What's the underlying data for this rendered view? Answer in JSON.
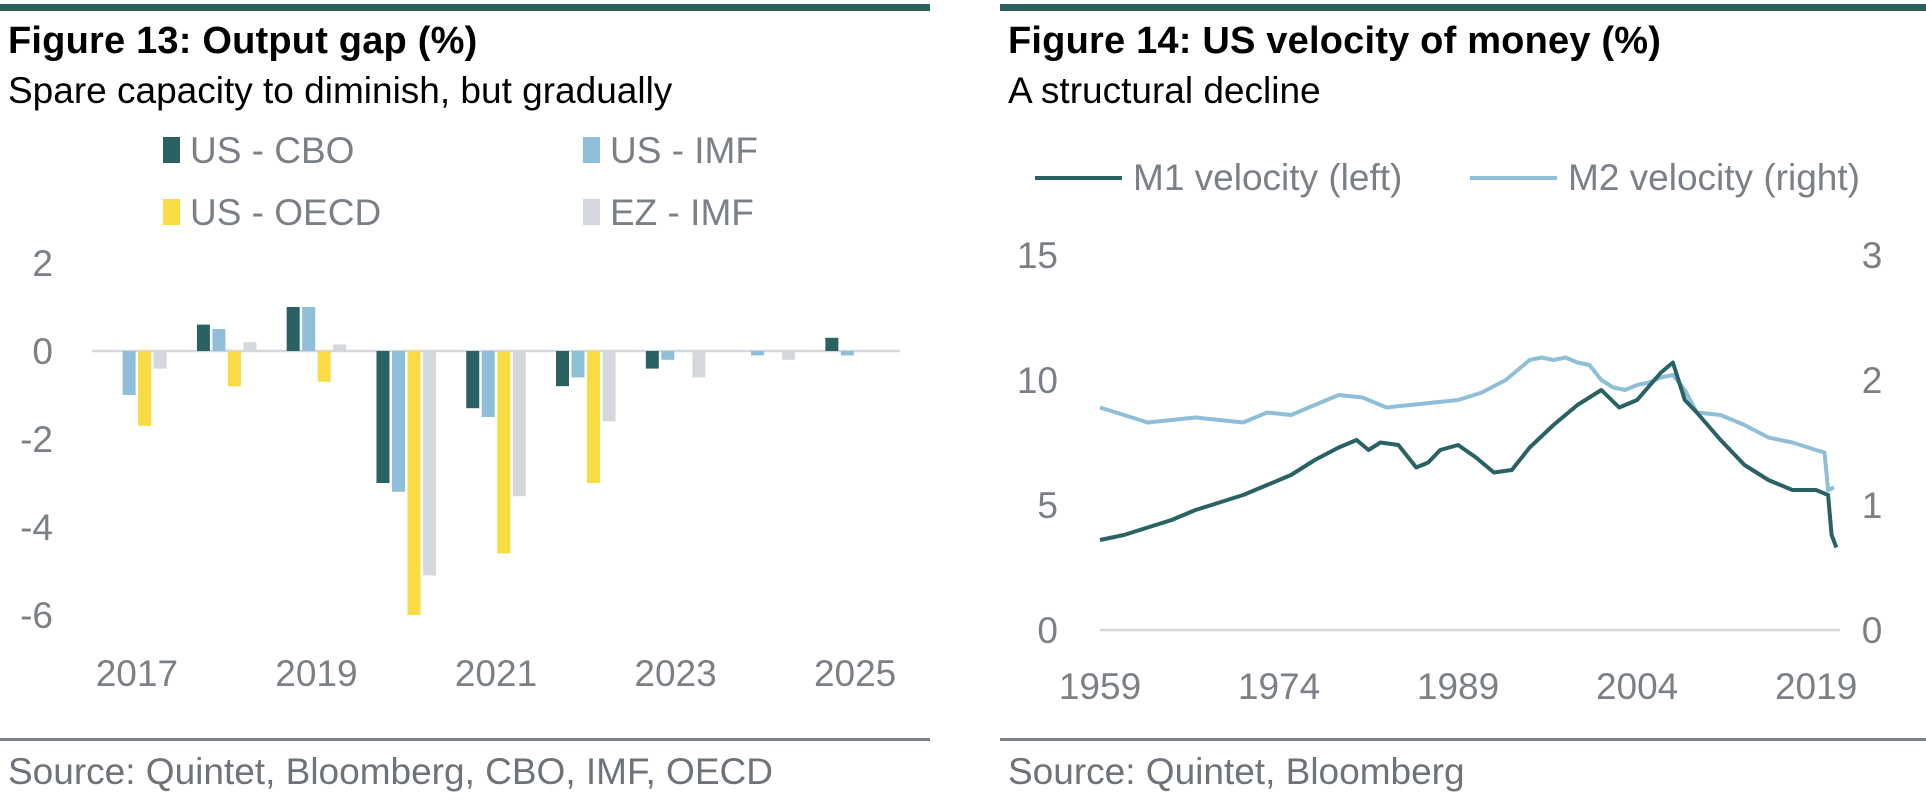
{
  "figure13": {
    "title": "Figure 13: Output gap (%)",
    "subtitle": "Spare capacity to diminish, but gradually",
    "source": "Source: Quintet, Bloomberg, CBO, IMF, OECD",
    "chart_data": {
      "type": "bar",
      "categories": [
        "2017",
        "2018",
        "2019",
        "2020",
        "2021",
        "2022",
        "2023",
        "2024",
        "2025"
      ],
      "tick_labels": [
        "2017",
        "2019",
        "2021",
        "2023",
        "2025"
      ],
      "ylim": [
        -6,
        2
      ],
      "yticks": [
        "2",
        "0",
        "-2",
        "-4",
        "-6"
      ],
      "legend_position": "top",
      "series": [
        {
          "name": "US - CBO",
          "color": "#2a6163",
          "values": [
            null,
            0.6,
            1.0,
            -3.0,
            -1.3,
            -0.8,
            -0.4,
            null,
            0.3
          ]
        },
        {
          "name": "US - IMF",
          "color": "#8fbfd8",
          "values": [
            -1.0,
            0.5,
            1.0,
            -3.2,
            -1.5,
            -0.6,
            -0.2,
            -0.1,
            -0.1
          ]
        },
        {
          "name": "US - OECD",
          "color": "#f9dc44",
          "values": [
            -1.7,
            -0.8,
            -0.7,
            -6.0,
            -4.6,
            -3.0,
            null,
            null,
            null
          ]
        },
        {
          "name": "EZ - IMF",
          "color": "#d4d8dd",
          "values": [
            -0.4,
            0.2,
            0.15,
            -5.1,
            -3.3,
            -1.6,
            -0.6,
            -0.2,
            null
          ]
        }
      ]
    }
  },
  "figure14": {
    "title": "Figure 14: US velocity of money (%)",
    "subtitle": "A structural decline",
    "source": "Source: Quintet, Bloomberg",
    "chart_data": {
      "type": "line",
      "xlim": [
        1959,
        2021
      ],
      "xticks": [
        "1959",
        "1974",
        "1989",
        "2004",
        "2019"
      ],
      "ylim_left": [
        0,
        15
      ],
      "yticks_left": [
        "15",
        "10",
        "5",
        "0"
      ],
      "ylim_right": [
        0,
        3
      ],
      "yticks_right": [
        "3",
        "2",
        "1",
        "0"
      ],
      "legend_position": "top",
      "series": [
        {
          "name": "M1 velocity (left)",
          "axis": "left",
          "color": "#2a6163",
          "x": [
            1959,
            1961,
            1963,
            1965,
            1967,
            1969,
            1971,
            1973,
            1975,
            1977,
            1979,
            1980.5,
            1981.5,
            1982.5,
            1984,
            1985.5,
            1986.5,
            1987.5,
            1989,
            1990.5,
            1992,
            1993.5,
            1995,
            1997,
            1999,
            2001,
            2002.5,
            2004,
            2006,
            2007,
            2008,
            2009,
            2011,
            2013,
            2015,
            2017,
            2019,
            2019.5,
            2020,
            2020.3,
            2020.7
          ],
          "y": [
            3.6,
            3.8,
            4.1,
            4.4,
            4.8,
            5.1,
            5.4,
            5.8,
            6.2,
            6.8,
            7.3,
            7.6,
            7.2,
            7.5,
            7.4,
            6.5,
            6.7,
            7.2,
            7.4,
            6.9,
            6.3,
            6.4,
            7.3,
            8.2,
            9.0,
            9.6,
            8.9,
            9.2,
            10.3,
            10.7,
            9.2,
            8.7,
            7.6,
            6.6,
            6.0,
            5.6,
            5.6,
            5.5,
            5.4,
            3.8,
            3.3
          ]
        },
        {
          "name": "M2 velocity (right)",
          "axis": "right",
          "color": "#8fbfd8",
          "x": [
            1959,
            1961,
            1963,
            1965,
            1967,
            1969,
            1971,
            1973,
            1975,
            1977,
            1979,
            1981,
            1983,
            1985,
            1987,
            1989,
            1991,
            1993,
            1995,
            1996,
            1997,
            1998,
            1999,
            2000,
            2001,
            2002,
            2003,
            2004,
            2005,
            2006,
            2007,
            2008,
            2009,
            2011,
            2013,
            2015,
            2017,
            2019,
            2019.7,
            2020,
            2020.5
          ],
          "y": [
            1.78,
            1.72,
            1.66,
            1.68,
            1.7,
            1.68,
            1.66,
            1.74,
            1.72,
            1.8,
            1.88,
            1.86,
            1.78,
            1.8,
            1.82,
            1.84,
            1.9,
            2.0,
            2.16,
            2.18,
            2.16,
            2.18,
            2.14,
            2.12,
            2.0,
            1.94,
            1.92,
            1.96,
            1.98,
            2.02,
            2.04,
            1.92,
            1.74,
            1.72,
            1.64,
            1.54,
            1.5,
            1.44,
            1.42,
            1.12,
            1.14
          ]
        }
      ]
    }
  }
}
